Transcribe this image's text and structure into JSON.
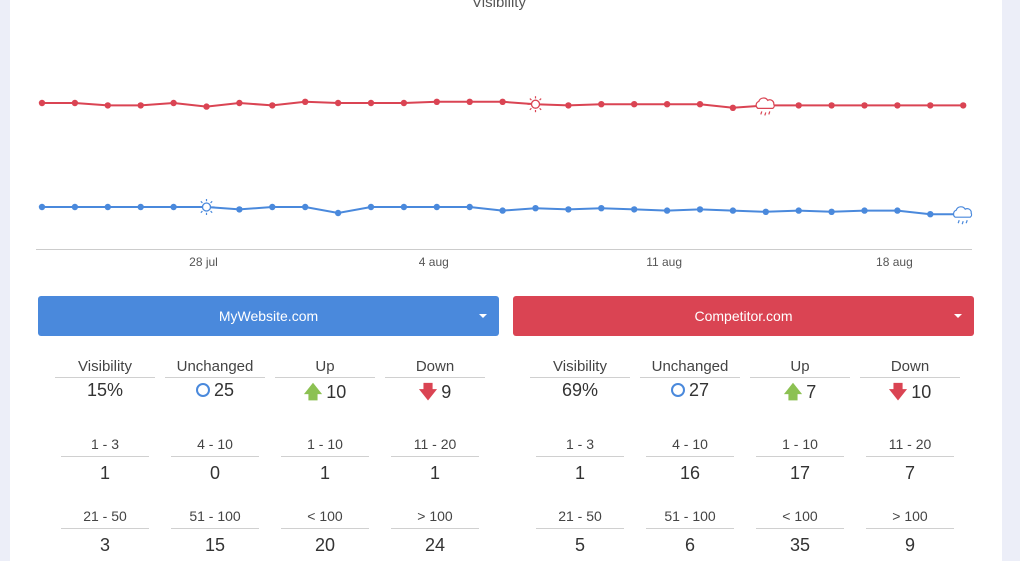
{
  "chart_data": {
    "type": "line",
    "title": "Visibility",
    "x_tick_labels": [
      "28 jul",
      "4 aug",
      "11 aug",
      "18 aug"
    ],
    "series": [
      {
        "name": "MyWebsite.com",
        "color": "#4a89dc",
        "values": [
          15,
          15,
          15,
          15,
          15,
          15,
          14.8,
          15,
          15,
          14.5,
          15,
          15,
          15,
          15,
          14.7,
          14.9,
          14.8,
          14.9,
          14.8,
          14.7,
          14.8,
          14.7,
          14.6,
          14.7,
          14.6,
          14.7,
          14.7,
          14.4,
          14.4
        ]
      },
      {
        "name": "Competitor.com",
        "color": "#da4453",
        "values": [
          69,
          69,
          68.8,
          68.8,
          69,
          68.7,
          69,
          68.8,
          69.1,
          69,
          69,
          69,
          69.1,
          69.1,
          69.1,
          68.9,
          68.8,
          68.9,
          68.9,
          68.9,
          68.9,
          68.6,
          68.8,
          68.8,
          68.8,
          68.8,
          68.8,
          68.8,
          68.8
        ]
      }
    ],
    "icons": [
      {
        "series": 0,
        "index": 5,
        "type": "sun-icon"
      },
      {
        "series": 0,
        "index": 28,
        "type": "cloud-rain-icon"
      },
      {
        "series": 1,
        "index": 15,
        "type": "sun-icon"
      },
      {
        "series": 1,
        "index": 22,
        "type": "cloud-rain-icon"
      }
    ]
  },
  "selectors": {
    "left": "MyWebsite.com",
    "right": "Competitor.com"
  },
  "left": {
    "row1": [
      {
        "label": "Visibility",
        "value": "15%"
      },
      {
        "label": "Unchanged",
        "value": "25"
      },
      {
        "label": "Up",
        "value": "10"
      },
      {
        "label": "Down",
        "value": "9"
      }
    ],
    "row2": [
      {
        "label": "1 - 3",
        "value": "1"
      },
      {
        "label": "4 - 10",
        "value": "0"
      },
      {
        "label": "1 - 10",
        "value": "1"
      },
      {
        "label": "11 - 20",
        "value": "1"
      }
    ],
    "row3": [
      {
        "label": "21 - 50",
        "value": "3"
      },
      {
        "label": "51 - 100",
        "value": "15"
      },
      {
        "label": "< 100",
        "value": "20"
      },
      {
        "label": "> 100",
        "value": "24"
      }
    ]
  },
  "right": {
    "row1": [
      {
        "label": "Visibility",
        "value": "69%"
      },
      {
        "label": "Unchanged",
        "value": "27"
      },
      {
        "label": "Up",
        "value": "7"
      },
      {
        "label": "Down",
        "value": "10"
      }
    ],
    "row2": [
      {
        "label": "1 - 3",
        "value": "1"
      },
      {
        "label": "4 - 10",
        "value": "16"
      },
      {
        "label": "1 - 10",
        "value": "17"
      },
      {
        "label": "11 - 20",
        "value": "7"
      }
    ],
    "row3": [
      {
        "label": "21 - 50",
        "value": "5"
      },
      {
        "label": "51 - 100",
        "value": "6"
      },
      {
        "label": "< 100",
        "value": "35"
      },
      {
        "label": "> 100",
        "value": "9"
      }
    ]
  }
}
